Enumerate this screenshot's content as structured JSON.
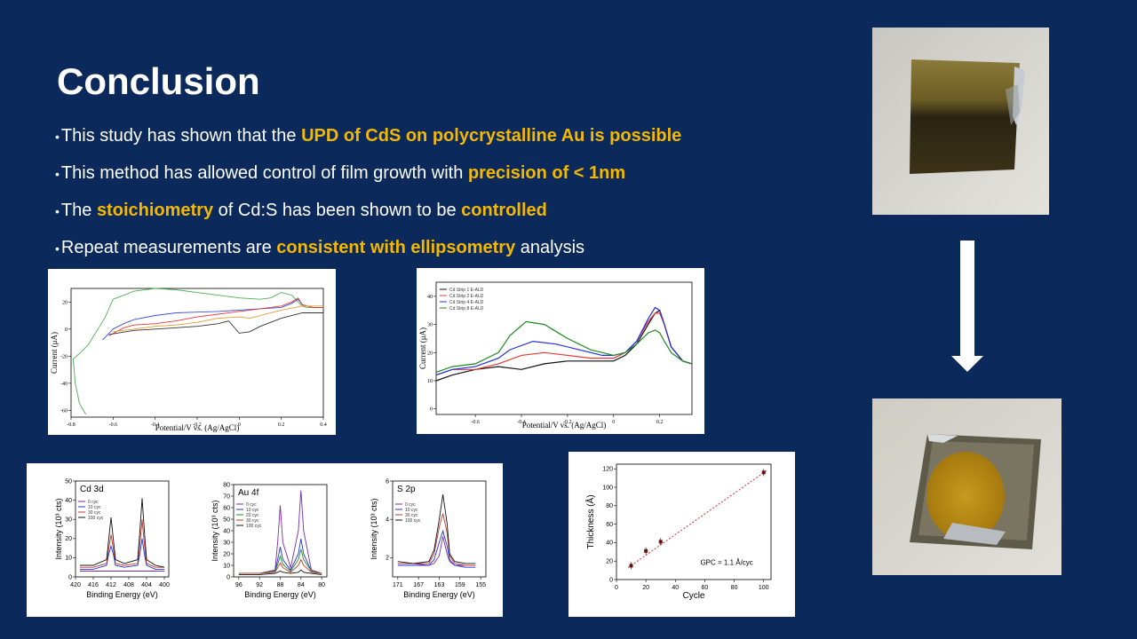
{
  "slide": {
    "title": "Conclusion",
    "bullets": [
      {
        "pre": "This study has shown that the ",
        "hl": "UPD of CdS on polycrystalline Au is possible",
        "post": "",
        "hl2": "",
        "post2": ""
      },
      {
        "pre": "This method has allowed control of film growth with ",
        "hl": "precision of < 1nm",
        "post": "",
        "hl2": "",
        "post2": ""
      },
      {
        "pre": "The ",
        "hl": "stoichiometry",
        "post": " of Cd:S has been shown to be ",
        "hl2": "controlled",
        "post2": ""
      },
      {
        "pre": "Repeat measurements are ",
        "hl": "consistent with ellipsometry",
        "post": " analysis",
        "hl2": "",
        "post2": ""
      }
    ],
    "colors": {
      "background": "#0b2a5b",
      "highlight": "#f5b800",
      "text": "#ffffff"
    }
  },
  "chart_data": [
    {
      "type": "line",
      "xlabel": "Potential/V vs. (Ag/AgCl)",
      "ylabel": "Current (μA)",
      "x_ticks": [
        "-0.8",
        "-0.6",
        "-0.4",
        "-0.2",
        "0",
        "0.2",
        "0.4"
      ],
      "y_ticks": [
        "20",
        "0",
        "-20",
        "-40",
        "-60"
      ],
      "xlim": [
        -0.8,
        0.4
      ],
      "ylim": [
        -65,
        30
      ],
      "series": [
        {
          "color": "#4caf50",
          "x": [
            -0.73,
            -0.76,
            -0.78,
            -0.79,
            -0.76,
            -0.72,
            -0.68,
            -0.64,
            -0.6,
            -0.5,
            -0.4,
            -0.3,
            -0.2,
            -0.1,
            0,
            0.1,
            0.15,
            0.2,
            0.25,
            0.28,
            0.3,
            0.32,
            0.35,
            0.4
          ],
          "y": [
            -63,
            -55,
            -40,
            -22,
            -18,
            -12,
            -2,
            8,
            22,
            28,
            30,
            29,
            27,
            25,
            23,
            22,
            23,
            27,
            25,
            20,
            17,
            16,
            16,
            16
          ]
        },
        {
          "color": "#3a4fe0",
          "x": [
            -0.65,
            -0.6,
            -0.55,
            -0.5,
            -0.4,
            -0.3,
            -0.2,
            -0.1,
            0,
            0.1,
            0.2,
            0.25,
            0.28,
            0.3,
            0.35,
            0.4
          ],
          "y": [
            -8,
            0,
            4,
            7,
            10,
            12,
            12.5,
            13,
            14,
            15,
            16,
            19,
            22,
            18,
            16,
            16
          ]
        },
        {
          "color": "#e53935",
          "x": [
            -0.62,
            -0.55,
            -0.5,
            -0.4,
            -0.3,
            -0.2,
            -0.1,
            0,
            0.1,
            0.2,
            0.25,
            0.28,
            0.3,
            0.35,
            0.4
          ],
          "y": [
            -5,
            1,
            3,
            4,
            6,
            9,
            11,
            13,
            15,
            17,
            20,
            23,
            18,
            16,
            16
          ]
        },
        {
          "color": "#e69a2e",
          "x": [
            -0.6,
            -0.5,
            -0.4,
            -0.3,
            -0.2,
            -0.1,
            0,
            0.05,
            0.1,
            0.2,
            0.3,
            0.4
          ],
          "y": [
            -2,
            0,
            2,
            3,
            5,
            8,
            9,
            8,
            10,
            14,
            17,
            17
          ]
        },
        {
          "color": "#333333",
          "x": [
            -0.62,
            -0.5,
            -0.4,
            -0.3,
            -0.2,
            -0.1,
            -0.05,
            0,
            0.05,
            0.1,
            0.2,
            0.3,
            0.4
          ],
          "y": [
            -4,
            -1,
            0,
            1,
            2,
            4,
            6,
            -3,
            -2,
            2,
            8,
            12,
            12
          ]
        }
      ]
    },
    {
      "type": "line",
      "xlabel": "Potential/V vs. (Ag/AgCl)",
      "ylabel": "Current (μA)",
      "x_ticks": [
        "-0.6",
        "-0.4",
        "-0.2",
        "0",
        "0.2"
      ],
      "y_ticks": [
        "40",
        "30",
        "20",
        "10",
        "0"
      ],
      "xlim": [
        -0.77,
        0.34
      ],
      "ylim": [
        -2,
        45
      ],
      "legend": [
        "Cd Strip 1 E-ALD",
        "Cd Strip 2 E-ALD",
        "Cd Strip 4 E-ALD",
        "Cd Strip 8 E-ALD"
      ],
      "series": [
        {
          "name": "Cd Strip 1 E-ALD",
          "color": "#111111",
          "x": [
            -0.77,
            -0.7,
            -0.6,
            -0.5,
            -0.4,
            -0.3,
            -0.2,
            -0.1,
            0,
            0.05,
            0.1,
            0.15,
            0.18,
            0.2,
            0.22,
            0.25,
            0.3,
            0.34
          ],
          "y": [
            10,
            12,
            14,
            15,
            14,
            16,
            17,
            17,
            17,
            19,
            23,
            30,
            34,
            35,
            30,
            22,
            17,
            16
          ]
        },
        {
          "name": "Cd Strip 2 E-ALD",
          "color": "#e53935",
          "x": [
            -0.77,
            -0.7,
            -0.6,
            -0.5,
            -0.4,
            -0.3,
            -0.2,
            -0.1,
            0,
            0.05,
            0.1,
            0.15,
            0.18,
            0.2,
            0.22,
            0.25,
            0.3,
            0.34
          ],
          "y": [
            12,
            14,
            14,
            16,
            19,
            20,
            19,
            18,
            18,
            20,
            24,
            31,
            34,
            34,
            30,
            22,
            17,
            16
          ]
        },
        {
          "name": "Cd Strip 4 E-ALD",
          "color": "#2030e0",
          "x": [
            -0.77,
            -0.7,
            -0.6,
            -0.5,
            -0.45,
            -0.35,
            -0.25,
            -0.15,
            -0.05,
            0,
            0.05,
            0.1,
            0.15,
            0.18,
            0.2,
            0.22,
            0.25,
            0.3,
            0.34
          ],
          "y": [
            12,
            14,
            15,
            18,
            21,
            24,
            23,
            21,
            19,
            19,
            20,
            24,
            32,
            36,
            35,
            30,
            22,
            17,
            16
          ]
        },
        {
          "name": "Cd Strip 8 E-ALD",
          "color": "#1f8a1f",
          "x": [
            -0.77,
            -0.7,
            -0.6,
            -0.5,
            -0.45,
            -0.38,
            -0.3,
            -0.2,
            -0.1,
            0,
            0.05,
            0.1,
            0.15,
            0.18,
            0.2,
            0.22,
            0.25,
            0.3,
            0.34
          ],
          "y": [
            13,
            15,
            16,
            20,
            26,
            31,
            30,
            25,
            21,
            19,
            20,
            23,
            27,
            28,
            27,
            24,
            20,
            17,
            16
          ]
        }
      ]
    },
    {
      "type": "line",
      "panel_label": "Cd 3d",
      "xlabel": "Binding Energy (eV)",
      "ylabel": "Intensity (10³ cts)",
      "x_ticks": [
        "420",
        "416",
        "412",
        "408",
        "404",
        "400"
      ],
      "y_ticks": [
        "50",
        "40",
        "30",
        "20",
        "10",
        "0"
      ],
      "xlim": [
        420,
        399
      ],
      "ylim": [
        0,
        50
      ],
      "legend": [
        "0 cyc",
        "10 cyc",
        "30 cyc",
        "100 cyc"
      ],
      "series": [
        {
          "name": "0 cyc",
          "color": "#7a2aa8",
          "x": [
            419,
            416,
            413,
            412.5,
            412,
            411.5,
            411,
            409,
            406,
            405.5,
            405,
            404.5,
            404,
            402,
            400
          ],
          "y": [
            3,
            3,
            3,
            3,
            3,
            3,
            3,
            3,
            3,
            3,
            3,
            3,
            3,
            3,
            3
          ]
        },
        {
          "name": "10 cyc",
          "color": "#2030e0",
          "x": [
            419,
            416,
            413,
            412.5,
            412,
            411.5,
            411,
            409,
            406,
            405.5,
            405,
            404.5,
            404,
            402,
            400
          ],
          "y": [
            4,
            4,
            6,
            12,
            16,
            12,
            6,
            5,
            6,
            12,
            20,
            12,
            6,
            4,
            4
          ]
        },
        {
          "name": "30 cyc",
          "color": "#c0392b",
          "x": [
            419,
            416,
            413,
            412.5,
            412,
            411.5,
            411,
            409,
            406,
            405.5,
            405,
            404.5,
            404,
            402,
            400
          ],
          "y": [
            5,
            5,
            7,
            15,
            22,
            15,
            7,
            6,
            7,
            17,
            30,
            17,
            7,
            5,
            5
          ]
        },
        {
          "name": "100 cyc",
          "color": "#111111",
          "x": [
            419,
            416,
            413,
            412.5,
            412,
            411.5,
            411,
            409,
            406,
            405.5,
            405,
            404.5,
            404,
            402,
            400
          ],
          "y": [
            6,
            6,
            9,
            20,
            31,
            20,
            9,
            7,
            9,
            24,
            41,
            24,
            9,
            6,
            5
          ]
        }
      ]
    },
    {
      "type": "line",
      "panel_label": "Au 4f",
      "xlabel": "Binding Energy (eV)",
      "ylabel": "Intensity (10³ cts)",
      "x_ticks": [
        "96",
        "92",
        "88",
        "84",
        "80"
      ],
      "y_ticks": [
        "80",
        "70",
        "60",
        "50",
        "40",
        "30",
        "20",
        "10",
        "0"
      ],
      "xlim": [
        97,
        79
      ],
      "ylim": [
        0,
        80
      ],
      "legend": [
        "0 cyc",
        "10 cyc",
        "20 cyc",
        "30 cyc",
        "100 cyc"
      ],
      "series": [
        {
          "name": "0 cyc",
          "color": "#7a2aa8",
          "x": [
            96,
            92,
            89,
            88.5,
            88,
            87.5,
            86,
            84.5,
            84,
            83.5,
            82,
            80
          ],
          "y": [
            3,
            3,
            6,
            30,
            62,
            30,
            8,
            40,
            75,
            40,
            6,
            3
          ]
        },
        {
          "name": "10 cyc",
          "color": "#2030e0",
          "x": [
            96,
            92,
            89,
            88.5,
            88,
            87.5,
            86,
            84.5,
            84,
            83.5,
            82,
            80
          ],
          "y": [
            3,
            3,
            5,
            15,
            26,
            15,
            6,
            20,
            33,
            20,
            5,
            3
          ]
        },
        {
          "name": "20 cyc",
          "color": "#1f8a1f",
          "x": [
            96,
            92,
            89,
            88.5,
            88,
            87.5,
            86,
            84.5,
            84,
            83.5,
            82,
            80
          ],
          "y": [
            3,
            3,
            5,
            11,
            18,
            11,
            5,
            15,
            24,
            15,
            5,
            3
          ]
        },
        {
          "name": "30 cyc",
          "color": "#c0392b",
          "x": [
            96,
            92,
            89,
            88.5,
            88,
            87.5,
            86,
            84.5,
            84,
            83.5,
            82,
            80
          ],
          "y": [
            3,
            3,
            4,
            8,
            12,
            8,
            4,
            10,
            15,
            10,
            4,
            3
          ]
        },
        {
          "name": "100 cyc",
          "color": "#111111",
          "x": [
            96,
            92,
            89,
            88.5,
            88,
            87.5,
            86,
            84.5,
            84,
            83.5,
            82,
            80
          ],
          "y": [
            2,
            2,
            3,
            4,
            5,
            4,
            3,
            4,
            6,
            4,
            3,
            2
          ]
        }
      ]
    },
    {
      "type": "line",
      "panel_label": "S 2p",
      "xlabel": "Binding Energy (eV)",
      "ylabel": "Intensity (10³ cts)",
      "x_ticks": [
        "171",
        "167",
        "163",
        "159",
        "155"
      ],
      "y_ticks": [
        "6",
        "4",
        "2"
      ],
      "xlim": [
        172,
        154
      ],
      "ylim": [
        1,
        6
      ],
      "legend": [
        "0 cyc",
        "10 cyc",
        "30 cyc",
        "100 cyc"
      ],
      "series": [
        {
          "name": "0 cyc",
          "color": "#7a2aa8",
          "x": [
            171,
            168,
            165,
            164,
            163,
            162.3,
            161.5,
            161,
            160,
            158,
            156
          ],
          "y": [
            1.7,
            1.7,
            1.6,
            1.7,
            2.1,
            3.1,
            2.2,
            1.8,
            1.6,
            1.6,
            1.6
          ]
        },
        {
          "name": "10 cyc",
          "color": "#2030e0",
          "x": [
            171,
            168,
            165,
            164,
            163,
            162.3,
            161.5,
            161,
            160,
            158,
            156
          ],
          "y": [
            1.6,
            1.6,
            1.6,
            1.9,
            2.8,
            3.4,
            2.6,
            1.9,
            1.6,
            1.5,
            1.5
          ]
        },
        {
          "name": "30 cyc",
          "color": "#c0392b",
          "x": [
            171,
            168,
            165,
            164,
            163,
            162.3,
            161.5,
            161,
            160,
            158,
            156
          ],
          "y": [
            1.7,
            1.7,
            1.7,
            2.2,
            3.6,
            4.3,
            3.3,
            2.1,
            1.7,
            1.6,
            1.6
          ]
        },
        {
          "name": "100 cyc",
          "color": "#111111",
          "x": [
            171,
            168,
            165,
            164,
            163,
            162.3,
            161.5,
            161,
            160,
            158,
            156
          ],
          "y": [
            1.8,
            1.7,
            1.8,
            2.4,
            4.0,
            5.3,
            3.8,
            2.2,
            1.8,
            1.7,
            1.7
          ]
        }
      ]
    },
    {
      "type": "scatter",
      "xlabel": "Cycle",
      "ylabel": "Thickness (Å)",
      "x_ticks": [
        "0",
        "20",
        "40",
        "60",
        "80",
        "100"
      ],
      "y_ticks": [
        "0",
        "20",
        "40",
        "60",
        "80",
        "100",
        "120"
      ],
      "xlim": [
        0,
        105
      ],
      "ylim": [
        0,
        125
      ],
      "annotation": "GPC = 1.1 Å/cyc",
      "x": [
        10,
        20,
        30,
        100
      ],
      "y": [
        15,
        31,
        41,
        116
      ],
      "fit": {
        "x": [
          8,
          102
        ],
        "y": [
          13,
          118
        ]
      }
    }
  ],
  "photos": {
    "before": "gold-coated substrate photo",
    "after": "substrate with CdS deposit photo"
  }
}
